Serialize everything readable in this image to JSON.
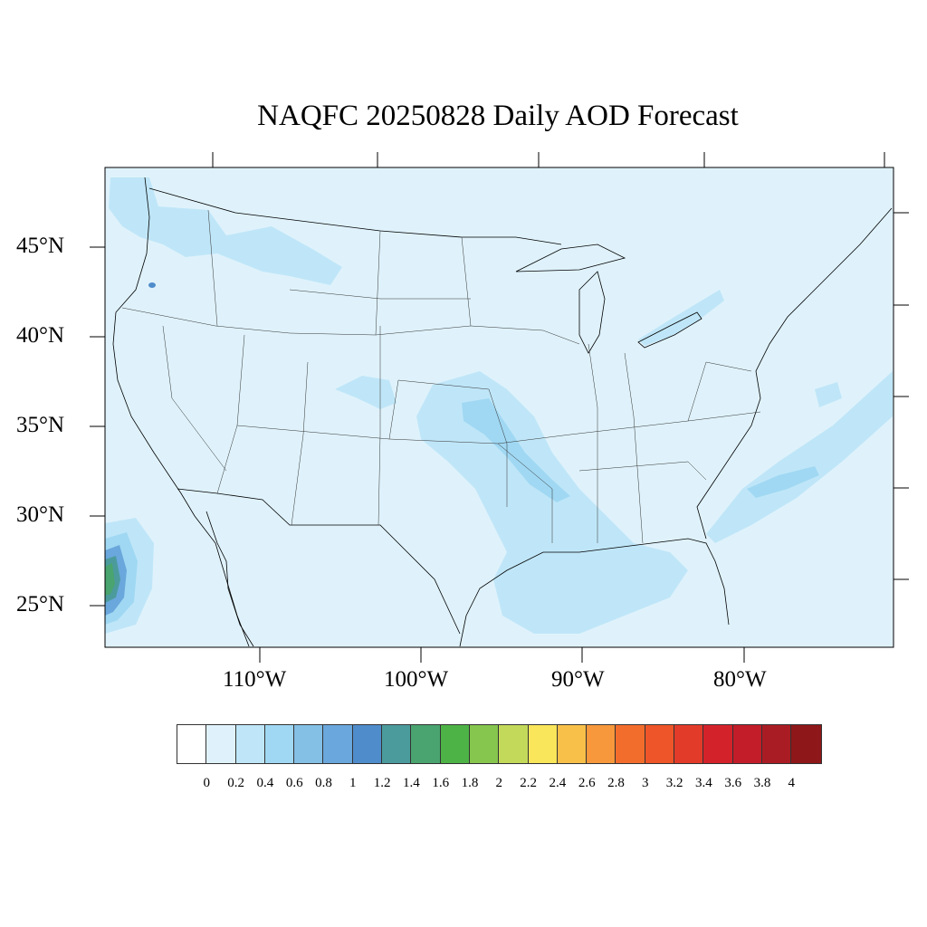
{
  "title": "NAQFC 20250828 Daily AOD Forecast",
  "lat_labels": [
    "45°N",
    "40°N",
    "35°N",
    "30°N",
    "25°N"
  ],
  "lon_labels": [
    "110°W",
    "100°W",
    "90°W",
    "80°W"
  ],
  "colorbar": {
    "colors": [
      "#ffffff",
      "#dff2fb",
      "#bfe6f8",
      "#a0d8f3",
      "#84bfe6",
      "#6aa7dc",
      "#4f8ccb",
      "#4b9b9c",
      "#49a46f",
      "#4db346",
      "#86c54e",
      "#c3d95a",
      "#f9e65a",
      "#f8c049",
      "#f6983b",
      "#f26d2c",
      "#ee5528",
      "#e23b2a",
      "#d4222b",
      "#c21d29",
      "#aa1c24",
      "#8e1719"
    ],
    "labels": [
      "0",
      "0.2",
      "0.4",
      "0.6",
      "0.8",
      "1",
      "1.2",
      "1.4",
      "1.6",
      "1.8",
      "2",
      "2.2",
      "2.4",
      "2.6",
      "2.8",
      "3",
      "3.2",
      "3.4",
      "3.6",
      "3.8",
      "4"
    ]
  }
}
